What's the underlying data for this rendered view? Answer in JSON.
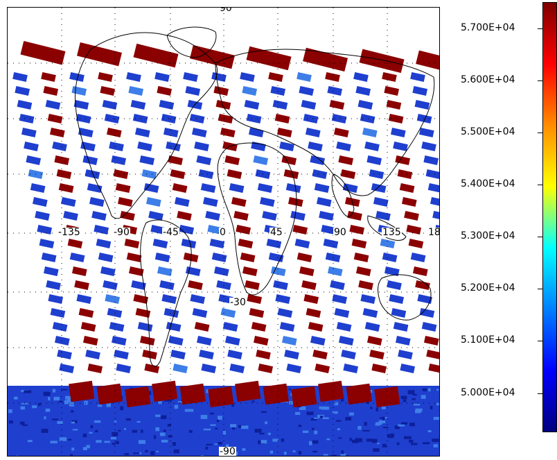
{
  "map": {
    "projection": "sinusoidal / global",
    "latitude_labels": {
      "top": "90",
      "bottom": "-90",
      "middle": "-30"
    },
    "longitude_labels": [
      "-135",
      "-90",
      "-45",
      "0",
      "45",
      "90",
      "135",
      "18"
    ],
    "colors": {
      "swath_high": "#8b0000",
      "swath_low": "#1f3fcf",
      "swath_mid": "#3e7ee8",
      "ocean_bg": "#ffffff",
      "coast": "#000000"
    }
  },
  "colorbar": {
    "labels": [
      "5.700E+04",
      "5.600E+04",
      "5.500E+04",
      "5.400E+04",
      "5.300E+04",
      "5.200E+04",
      "5.100E+04",
      "5.000E+04"
    ],
    "values": [
      57000,
      56000,
      55000,
      54000,
      53000,
      52000,
      51000,
      50000
    ],
    "colors": [
      "#7f0000",
      "#ff0000",
      "#ff8c00",
      "#ffff00",
      "#00ffff",
      "#0080ff",
      "#0000ff",
      "#000080"
    ]
  }
}
